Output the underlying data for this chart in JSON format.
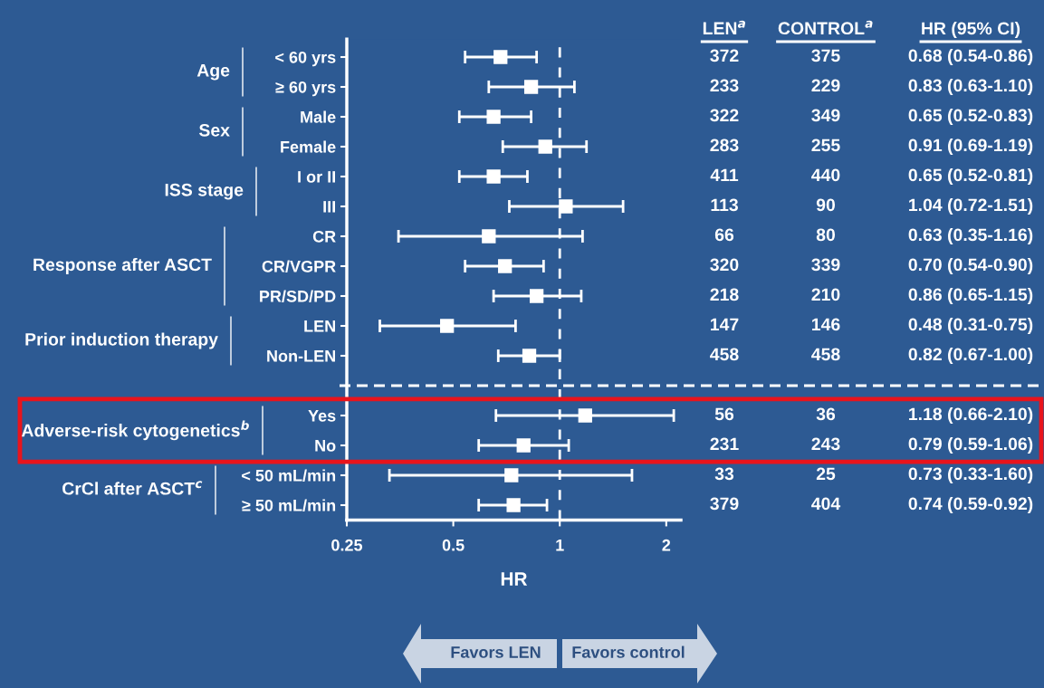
{
  "chart_data": {
    "type": "scatter",
    "orientation": "horizontal",
    "xlabel": "HR",
    "log": "x",
    "xlim": [
      0.25,
      2.2
    ],
    "xticks": [
      0.25,
      0.5,
      1,
      2
    ],
    "grid": false,
    "legend": false,
    "marker": "square",
    "color": "#ffffff",
    "categories": [
      "< 60 yrs",
      "≥ 60 yrs",
      "Male",
      "Female",
      "I or II",
      "III",
      "CR",
      "CR/VGPR",
      "PR/SD/PD",
      "LEN",
      "Non-LEN",
      "Yes",
      "No",
      "< 50 mL/min",
      "≥ 50 mL/min"
    ],
    "values": [
      0.68,
      0.83,
      0.65,
      0.91,
      0.65,
      1.04,
      0.63,
      0.7,
      0.86,
      0.48,
      0.82,
      1.18,
      0.79,
      0.73,
      0.74
    ],
    "errors": [
      [
        0.54,
        0.86
      ],
      [
        0.63,
        1.1
      ],
      [
        0.52,
        0.83
      ],
      [
        0.69,
        1.19
      ],
      [
        0.52,
        0.81
      ],
      [
        0.72,
        1.51
      ],
      [
        0.35,
        1.16
      ],
      [
        0.54,
        0.9
      ],
      [
        0.65,
        1.15
      ],
      [
        0.31,
        0.75
      ],
      [
        0.67,
        1.0
      ],
      [
        0.66,
        2.1
      ],
      [
        0.59,
        1.06
      ],
      [
        0.33,
        1.6
      ],
      [
        0.59,
        0.92
      ]
    ],
    "value_labels": [
      "0.68 (0.54-0.86)",
      "0.83 (0.63-1.10)",
      "0.65 (0.52-0.83)",
      "0.91 (0.69-1.19)",
      "0.65 (0.52-0.81)",
      "1.04 (0.72-1.51)",
      "0.63 (0.35-1.16)",
      "0.70 (0.54-0.90)",
      "0.86 (0.65-1.15)",
      "0.48 (0.31-0.75)",
      "0.82 (0.67-1.00)",
      "1.18 (0.66-2.10)",
      "0.79 (0.59-1.06)",
      "0.73 (0.33-1.60)",
      "0.74 (0.59-0.92)"
    ],
    "ref_lines": [
      {
        "axis": "x",
        "value": 1,
        "color": "#ffffff",
        "line_style": "dashed"
      }
    ],
    "annotations": [
      "LEN$^{a}$",
      "CONTROL$^{a}$",
      "HR (95% CI)",
      "Age",
      "Sex",
      "ISS stage",
      "Response after ASCT",
      "Prior induction therapy",
      "Adverse-risk cytogenetics$^{b}$",
      "CrCl after ASCT$^{c}$",
      "372",
      "375",
      "233",
      "229",
      "322",
      "349",
      "283",
      "255",
      "411",
      "440",
      "113",
      "90",
      "66",
      "80",
      "320",
      "339",
      "218",
      "210",
      "147",
      "146",
      "458",
      "458",
      "56",
      "36",
      "231",
      "243",
      "33",
      "25",
      "379",
      "404",
      "Favors LEN",
      "Favors control"
    ]
  }
}
